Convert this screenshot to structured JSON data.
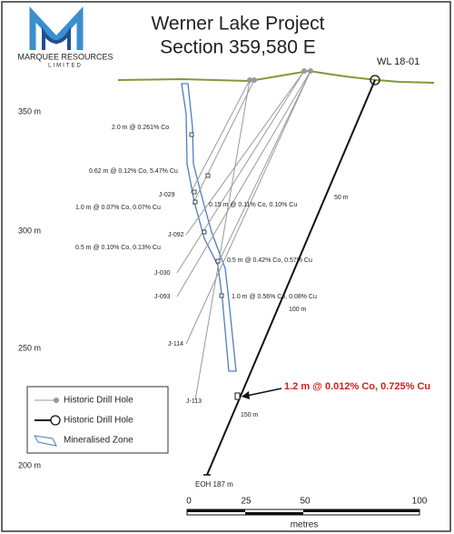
{
  "header": {
    "logo_name": "MARQUEE RESOURCES",
    "logo_sub": "LIMITED",
    "title": "Werner Lake Project",
    "subtitle": "Section 359,580 E"
  },
  "elevation_labels": [
    "350 m",
    "300 m",
    "250 m",
    "200 m"
  ],
  "drill_hole": {
    "name": "WL 18-01",
    "depth_labels": [
      "50 m",
      "100 m",
      "150 m"
    ],
    "eoh": "EOH 187 m",
    "intercept": "1.2 m @ 0.012% Co, 0.725% Cu"
  },
  "historic_holes": [
    "J-029",
    "J-092",
    "J-030",
    "J-093",
    "J-114",
    "J-113"
  ],
  "historic_intercepts": [
    "2.0 m @ 0.261% Co",
    "0.62 m @ 0.12% Co, 5.47% Cu",
    "1.0 m @ 0.07% Co, 0.07% Cu",
    "0.15 m @ 0.11% Co, 0.10% Cu",
    "0.5 m @ 0.10% Co, 0.13% Cu",
    "0.5 m @ 0.42% Co, 0.57% Cu",
    "1.0 m @ 0.56% Co, 0.08% Cu"
  ],
  "legend": [
    "Historic Drill Hole",
    "Historic Drill Hole",
    "Mineralised Zone"
  ],
  "scale": {
    "ticks": [
      "0",
      "25",
      "50",
      "100"
    ],
    "unit": "metres"
  }
}
